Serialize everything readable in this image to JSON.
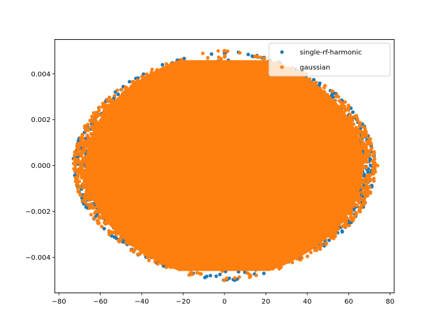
{
  "chart_data": {
    "type": "scatter",
    "title": "",
    "xlabel": "",
    "ylabel": "",
    "xlim": [
      -82,
      82
    ],
    "ylim": [
      -0.00555,
      0.0055
    ],
    "x_ticks": [
      -80,
      -60,
      -40,
      -20,
      0,
      20,
      40,
      60,
      80
    ],
    "x_tick_labels": [
      "−80",
      "−60",
      "−40",
      "−20",
      "0",
      "20",
      "40",
      "60",
      "80"
    ],
    "y_ticks": [
      -0.004,
      -0.002,
      0.0,
      0.002,
      0.004
    ],
    "y_tick_labels": [
      "−0.004",
      "−0.002",
      "0.000",
      "0.002",
      "0.004"
    ],
    "grid": false,
    "legend_position": "top-right",
    "series": [
      {
        "name": "single-rf-harmonic",
        "color": "#1f77b4",
        "marker": "point",
        "description_points": [
          [
            -73,
            0.0003
          ],
          [
            -70,
            0.0005
          ],
          [
            -65,
            -0.0009
          ],
          [
            -60,
            0.0013
          ],
          [
            -55,
            -0.0017
          ],
          [
            -45,
            0.0026
          ],
          [
            -40,
            -0.0031
          ],
          [
            -25,
            0.0041
          ],
          [
            -15,
            -0.0047
          ],
          [
            0,
            0.0049
          ],
          [
            5,
            -0.005
          ],
          [
            20,
            0.0045
          ],
          [
            30,
            -0.004
          ],
          [
            40,
            0.0034
          ],
          [
            50,
            -0.0026
          ],
          [
            58,
            0.0017
          ],
          [
            65,
            -0.0009
          ],
          [
            71,
            0.0006
          ]
        ]
      },
      {
        "name": "gaussian",
        "color": "#ff7f0e",
        "marker": "point",
        "description_points": [
          [
            -72,
            0.0
          ],
          [
            -68,
            0.0006
          ],
          [
            -62,
            -0.0011
          ],
          [
            -52,
            0.002
          ],
          [
            -42,
            -0.0028
          ],
          [
            -30,
            0.0038
          ],
          [
            -18,
            -0.0045
          ],
          [
            -3,
            0.005
          ],
          [
            5,
            -0.0049
          ],
          [
            22,
            0.0043
          ],
          [
            35,
            -0.0037
          ],
          [
            45,
            0.003
          ],
          [
            55,
            -0.002
          ],
          [
            63,
            0.0012
          ],
          [
            70,
            -0.0004
          ],
          [
            74,
            0.0
          ]
        ]
      }
    ]
  }
}
